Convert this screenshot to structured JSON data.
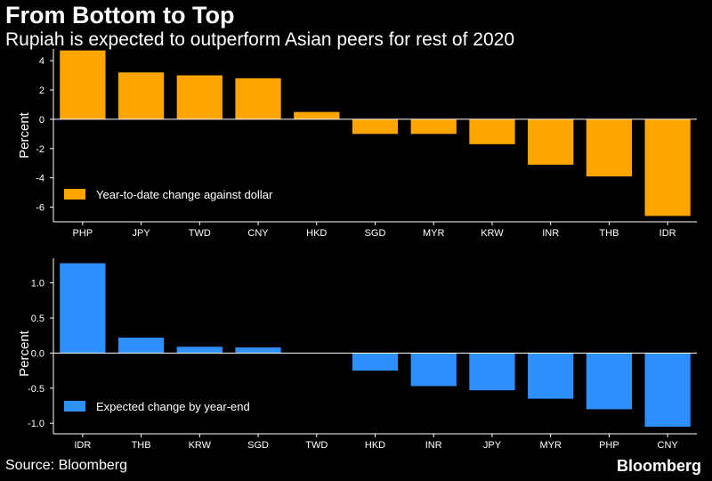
{
  "header": {
    "title": "From Bottom to Top",
    "subtitle": "Rupiah is expected to outperform Asian peers for rest of 2020"
  },
  "footer": {
    "source": "Source: Bloomberg",
    "brand": "Bloomberg"
  },
  "chart_data": [
    {
      "type": "bar",
      "categories": [
        "PHP",
        "JPY",
        "TWD",
        "CNY",
        "HKD",
        "SGD",
        "MYR",
        "KRW",
        "INR",
        "THB",
        "IDR"
      ],
      "series": [
        {
          "name": "Year-to-date change against dollar",
          "values": [
            4.7,
            3.2,
            3.0,
            2.8,
            0.5,
            -1.0,
            -1.0,
            -1.7,
            -3.1,
            -3.9,
            -6.6
          ],
          "color": "#ffa500"
        }
      ],
      "ylabel": "Percent",
      "ylim": [
        -7.0,
        4.8
      ],
      "yticks": [
        4,
        2,
        0,
        -2,
        -4,
        -6
      ],
      "ytick_labels": [
        "4",
        "2",
        "0",
        "-2",
        "-4",
        "-6"
      ],
      "grid": false,
      "legend": "bottom-left"
    },
    {
      "type": "bar",
      "categories": [
        "IDR",
        "THB",
        "KRW",
        "SGD",
        "TWD",
        "HKD",
        "INR",
        "JPY",
        "MYR",
        "PHP",
        "CNY"
      ],
      "series": [
        {
          "name": "Expected change by year-end",
          "values": [
            1.28,
            0.22,
            0.09,
            0.08,
            0.0,
            -0.25,
            -0.47,
            -0.53,
            -0.65,
            -0.8,
            -1.05
          ],
          "color": "#2e8fff"
        }
      ],
      "ylabel": "Percent",
      "ylim": [
        -1.15,
        1.35
      ],
      "yticks": [
        1.0,
        0.5,
        0.0,
        -0.5,
        -1.0
      ],
      "ytick_labels": [
        "1.0",
        "0.5",
        "0.0",
        "-0.5",
        "-1.0"
      ],
      "grid": false,
      "legend": "bottom-left"
    }
  ]
}
